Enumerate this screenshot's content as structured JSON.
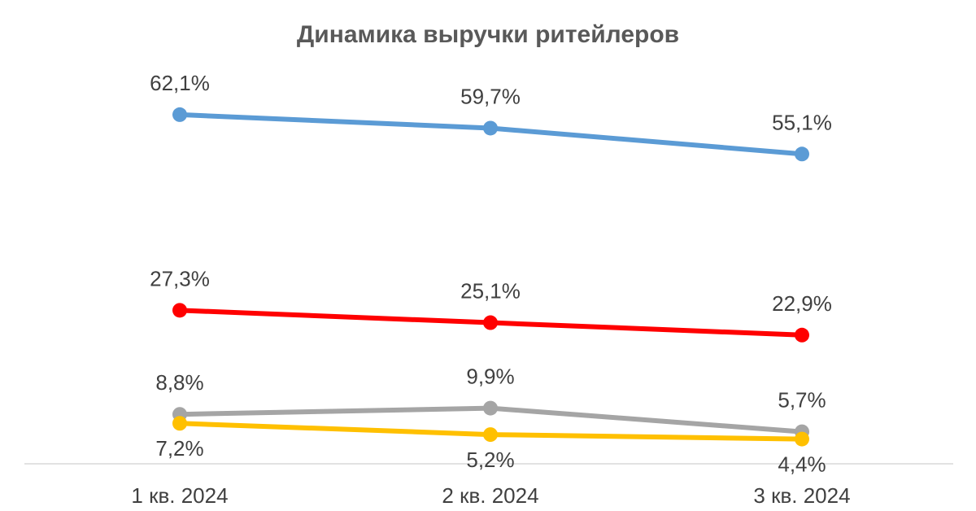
{
  "chart_data": {
    "type": "line",
    "title": "Динамика выручки ритейлеров",
    "categories": [
      "1 кв. 2024",
      "2 кв. 2024",
      "3 кв. 2024"
    ],
    "series": [
      {
        "color": "#5b9bd5",
        "values": [
          62.1,
          59.7,
          55.1
        ],
        "labels": [
          "62,1%",
          "59,7%",
          "55,1%"
        ],
        "label_position": "above"
      },
      {
        "color": "#ff0000",
        "values": [
          27.3,
          25.1,
          22.9
        ],
        "labels": [
          "27,3%",
          "25,1%",
          "22,9%"
        ],
        "label_position": "above"
      },
      {
        "color": "#a5a5a5",
        "values": [
          8.8,
          9.9,
          5.7
        ],
        "labels": [
          "8,8%",
          "9,9%",
          "5,7%"
        ],
        "label_position": "above"
      },
      {
        "color": "#ffc000",
        "values": [
          7.2,
          5.2,
          4.4
        ],
        "labels": [
          "7,2%",
          "5,2%",
          "4,4%"
        ],
        "label_position": "below"
      }
    ],
    "xlabel": "",
    "ylabel": "",
    "ylim": [
      0,
      70
    ],
    "grid": false,
    "legend": "none"
  }
}
